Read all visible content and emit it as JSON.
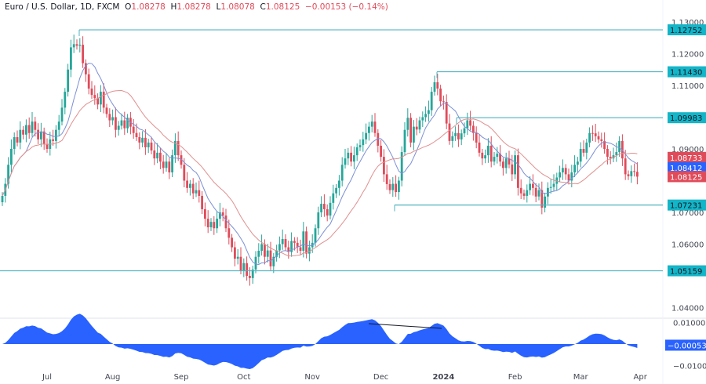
{
  "header": {
    "symbol": "Euro / U.S. Dollar, 1D, FXCM",
    "o_label": "O",
    "o": "1.08278",
    "h_label": "H",
    "h": "1.08278",
    "l_label": "L",
    "l": "1.08078",
    "c_label": "C",
    "c": "1.08125",
    "change": "−0.00153 (−0.14%)"
  },
  "colors": {
    "up": "#26a69a",
    "down": "#e04b5a",
    "ma_fast": "#7b8fd6",
    "ma_slow": "#e0908f",
    "level": "#4fb3c0",
    "level_tag": "#13b5c8",
    "osc": "#2962ff",
    "trendline": "#131722"
  },
  "chart_data": {
    "type": "candlestick",
    "title": "Euro / U.S. Dollar, 1D, FXCM",
    "ylim": [
      1.035,
      1.13
    ],
    "price_ticks": [
      "1.13000",
      "1.12000",
      "1.11000",
      "1.09000",
      "1.07000",
      "1.06000",
      "1.04000"
    ],
    "price_tick_values": [
      1.13,
      1.12,
      1.11,
      1.09,
      1.07,
      1.06,
      1.04
    ],
    "month_labels": [
      "Jul",
      "Aug",
      "Sep",
      "Oct",
      "Nov",
      "Dec",
      "2024",
      "Feb",
      "Mar",
      "Apr"
    ],
    "closes": [
      1.0752,
      1.079,
      1.085,
      1.09,
      1.0937,
      1.092,
      1.096,
      1.0945,
      1.0975,
      1.095,
      1.0986,
      1.096,
      1.093,
      1.0955,
      1.0915,
      1.09,
      1.093,
      1.0925,
      1.096,
      1.0986,
      1.103,
      1.108,
      1.115,
      1.122,
      1.123,
      1.1225,
      1.1228,
      1.117,
      1.1135,
      1.109,
      1.107,
      1.106,
      1.104,
      1.108,
      1.103,
      1.101,
      1.099,
      1.1,
      1.096,
      1.0973,
      1.099,
      1.0965,
      1.0998,
      1.097,
      1.095,
      1.0937,
      1.092,
      1.0935,
      1.0905,
      1.092,
      1.0895,
      1.087,
      1.0888,
      1.086,
      1.084,
      1.086,
      1.0826,
      1.088,
      1.0925,
      1.088,
      1.085,
      1.08,
      1.0777,
      1.079,
      1.076,
      1.077,
      1.0752,
      1.071,
      1.068,
      1.0653,
      1.067,
      1.065,
      1.068,
      1.07,
      1.069,
      1.065,
      1.062,
      1.059,
      1.0554,
      1.056,
      1.0517,
      1.054,
      1.05,
      1.0493,
      1.052,
      1.056,
      1.0579,
      1.06,
      1.056,
      1.058,
      1.053,
      1.056,
      1.058,
      1.06,
      1.0616,
      1.059,
      1.0575,
      1.061,
      1.0604,
      1.059,
      1.0579,
      1.064,
      1.057,
      1.059,
      1.0604,
      1.065,
      1.07,
      1.0727,
      1.071,
      1.069,
      1.073,
      1.076,
      1.0777,
      1.08,
      1.085,
      1.087,
      1.0888,
      1.086,
      1.088,
      1.0905,
      1.0912,
      1.093,
      1.095,
      1.097,
      1.0986,
      1.095,
      1.091,
      1.0875,
      1.082,
      1.0789,
      1.077,
      1.079,
      1.0764,
      1.08,
      1.089,
      1.096,
      1.0998,
      1.092,
      1.097,
      1.0961,
      1.099,
      1.1,
      1.101,
      1.1022,
      1.108,
      1.111,
      1.109,
      1.105,
      1.1048,
      1.098,
      1.0925,
      1.094,
      1.095,
      1.093,
      1.0949,
      1.0965,
      1.099,
      1.0973,
      1.095,
      1.092,
      1.0888,
      1.087,
      1.088,
      1.091,
      1.086,
      1.0875,
      1.0885,
      1.086,
      1.084,
      1.087,
      1.0851,
      1.082,
      1.088,
      1.0777,
      1.076,
      1.0752,
      1.077,
      1.079,
      1.0777,
      1.075,
      1.077,
      1.0715,
      1.075,
      1.0777,
      1.078,
      1.079,
      1.081,
      1.0826,
      1.084,
      1.082,
      1.08,
      1.0826,
      1.085,
      1.086,
      1.09,
      1.0888,
      1.092,
      1.095,
      1.0949,
      1.094,
      1.093,
      1.0925,
      1.09,
      1.0875,
      1.087,
      1.088,
      1.089,
      1.0925,
      1.087,
      1.082,
      1.0814,
      1.083,
      1.0828,
      1.08125
    ],
    "levels": [
      {
        "value": 1.12752,
        "label": "1.12752"
      },
      {
        "value": 1.1143,
        "label": "1.11430"
      },
      {
        "value": 1.09983,
        "label": "1.09983"
      },
      {
        "value": 1.07231,
        "label": "1.07231"
      },
      {
        "value": 1.05159,
        "label": "1.05159"
      }
    ],
    "price_tags": [
      {
        "value": 1.08733,
        "label": "1.08733",
        "color": "#e04b5a"
      },
      {
        "value": 1.08412,
        "label": "1.08412",
        "color": "#2962ff"
      },
      {
        "value": 1.08125,
        "label": "1.08125",
        "color": "#e04b5a"
      }
    ],
    "oscillator": {
      "ylim": [
        -0.012,
        0.012
      ],
      "ticks": [
        "0.01000",
        "−0.01000"
      ],
      "tick_values": [
        0.01,
        -0.01
      ],
      "last_label": "−0.00053",
      "last_value": -0.00053
    }
  }
}
